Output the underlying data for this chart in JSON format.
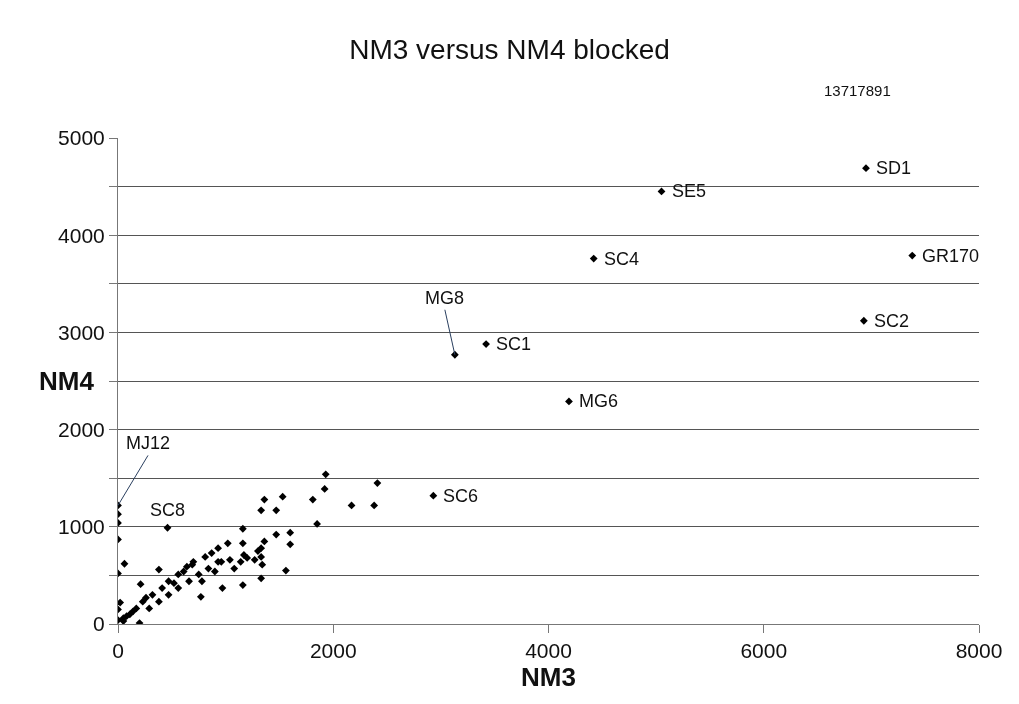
{
  "chart_data": {
    "type": "scatter",
    "title": "NM3 versus NM4 blocked",
    "xlabel": "NM3",
    "ylabel": "NM4",
    "annotations": [
      "13717891",
      {
        "text": "SD1",
        "x": 6950,
        "y": 4690
      },
      {
        "text": "SE5",
        "x": 5050,
        "y": 4450
      },
      {
        "text": "SC4",
        "x": 4420,
        "y": 3760
      },
      {
        "text": "GR170",
        "x": 7380,
        "y": 3790
      },
      {
        "text": "SC2",
        "x": 6930,
        "y": 3120
      },
      {
        "text": "MG8",
        "x": 3130,
        "y": 2770
      },
      {
        "text": "SC1",
        "x": 3420,
        "y": 2880
      },
      {
        "text": "MG6",
        "x": 4190,
        "y": 2290
      },
      {
        "text": "SC6",
        "x": 2930,
        "y": 1320
      },
      {
        "text": "SC8",
        "x": 460,
        "y": 990
      },
      {
        "text": "MJ12",
        "x": 0,
        "y": 1220
      }
    ],
    "series": [
      {
        "color": "#000000",
        "x": [
          6950,
          5050,
          4420,
          7380,
          6930,
          3130,
          3420,
          4190,
          2930,
          460,
          0,
          0,
          0,
          0,
          0,
          60,
          380,
          210,
          1160,
          1160,
          1360,
          1330,
          1470,
          1530,
          1470,
          1600,
          1600,
          1360,
          1330,
          1330,
          1340,
          1330,
          1560,
          1160,
          970,
          770,
          1810,
          1920,
          1930,
          1850,
          2170,
          2380,
          2410,
          1020,
          930,
          870,
          810,
          700,
          610,
          560,
          470,
          410,
          320,
          230,
          170,
          110,
          50,
          0,
          0,
          20,
          50,
          200,
          1200,
          1140,
          1080,
          1170,
          930,
          840,
          750,
          660,
          560,
          470,
          380,
          290,
          900,
          780,
          960,
          690,
          520,
          640,
          1040,
          1300,
          1270,
          140,
          80,
          260
        ],
        "values": [
          4690,
          4450,
          3760,
          3790,
          3120,
          2770,
          2880,
          2290,
          1320,
          990,
          1220,
          1130,
          1040,
          870,
          520,
          620,
          560,
          410,
          980,
          830,
          1280,
          1170,
          1170,
          1310,
          920,
          940,
          820,
          850,
          780,
          690,
          610,
          470,
          550,
          400,
          370,
          280,
          1280,
          1390,
          1540,
          1030,
          1220,
          1220,
          1450,
          830,
          780,
          730,
          690,
          640,
          540,
          510,
          440,
          370,
          300,
          230,
          160,
          100,
          60,
          40,
          150,
          220,
          30,
          10,
          680,
          640,
          570,
          710,
          640,
          570,
          510,
          440,
          370,
          300,
          230,
          160,
          540,
          440,
          640,
          610,
          420,
          590,
          660,
          750,
          660,
          130,
          80,
          270
        ]
      }
    ],
    "xlim": [
      0,
      8000
    ],
    "xticks": [
      0,
      2000,
      4000,
      6000,
      8000
    ],
    "ylim": [
      0,
      5000
    ],
    "yticks": [
      0,
      {
        "value": 500,
        "label": null
      },
      1000,
      {
        "value": 1500,
        "label": null
      },
      2000,
      {
        "value": 2500,
        "label": null
      },
      3000,
      {
        "value": 3500,
        "label": null
      },
      4000,
      {
        "value": 4500,
        "label": null
      },
      5000
    ],
    "grid": "y",
    "legend": false,
    "marker": "diamond"
  }
}
